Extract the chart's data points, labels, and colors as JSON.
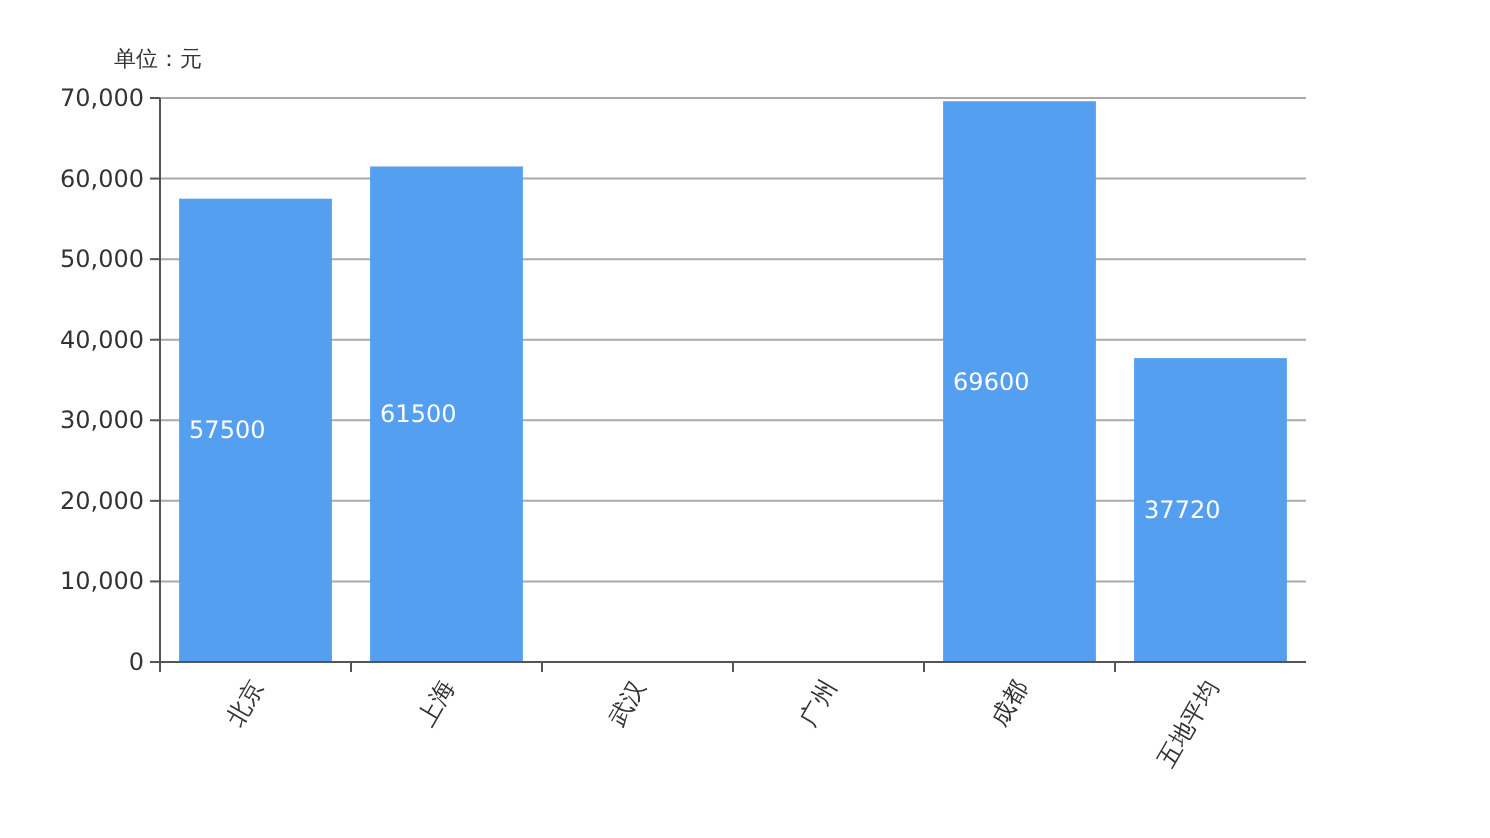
{
  "chart_data": {
    "type": "bar",
    "ylabel": "单位：元",
    "categories": [
      "北京",
      "上海",
      "武汉",
      "广州",
      "成都",
      "五地平均"
    ],
    "values": [
      57500,
      61500,
      0,
      0,
      69600,
      37720
    ],
    "value_labels": [
      "57500",
      "61500",
      null,
      null,
      "69600",
      "37720"
    ],
    "color": "#559ff0",
    "ylim": [
      0,
      70000
    ],
    "yticks": [
      0,
      {
        "value": 10000,
        "label": "10,000"
      },
      {
        "value": 20000,
        "label": "20,000"
      },
      {
        "value": 30000,
        "label": "30,000"
      },
      {
        "value": 40000,
        "label": "40,000"
      },
      {
        "value": 50000,
        "label": "50,000"
      },
      {
        "value": 60000,
        "label": "60,000"
      },
      {
        "value": 70000,
        "label": "70,000"
      }
    ],
    "grid": "y"
  }
}
